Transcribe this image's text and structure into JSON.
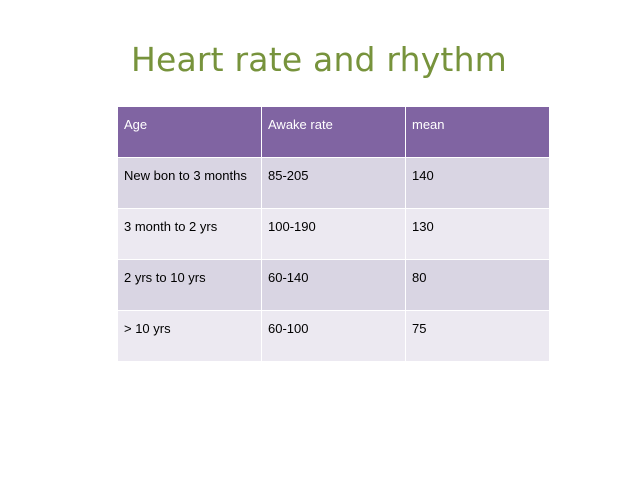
{
  "slide": {
    "title": "Heart rate and rhythm"
  },
  "table": {
    "headers": [
      "Age",
      "Awake rate",
      "mean"
    ],
    "rows": [
      [
        "New bon to 3 months",
        "85-205",
        "140"
      ],
      [
        "3 month to 2 yrs",
        "100-190",
        "130"
      ],
      [
        "2 yrs to 10 yrs",
        "60-140",
        "80"
      ],
      [
        "> 10 yrs",
        "60-100",
        "75"
      ]
    ]
  },
  "colors": {
    "title": "#77933c",
    "header_bg": "#8064a2",
    "row_odd_bg": "#d9d5e3",
    "row_even_bg": "#ece9f1"
  }
}
